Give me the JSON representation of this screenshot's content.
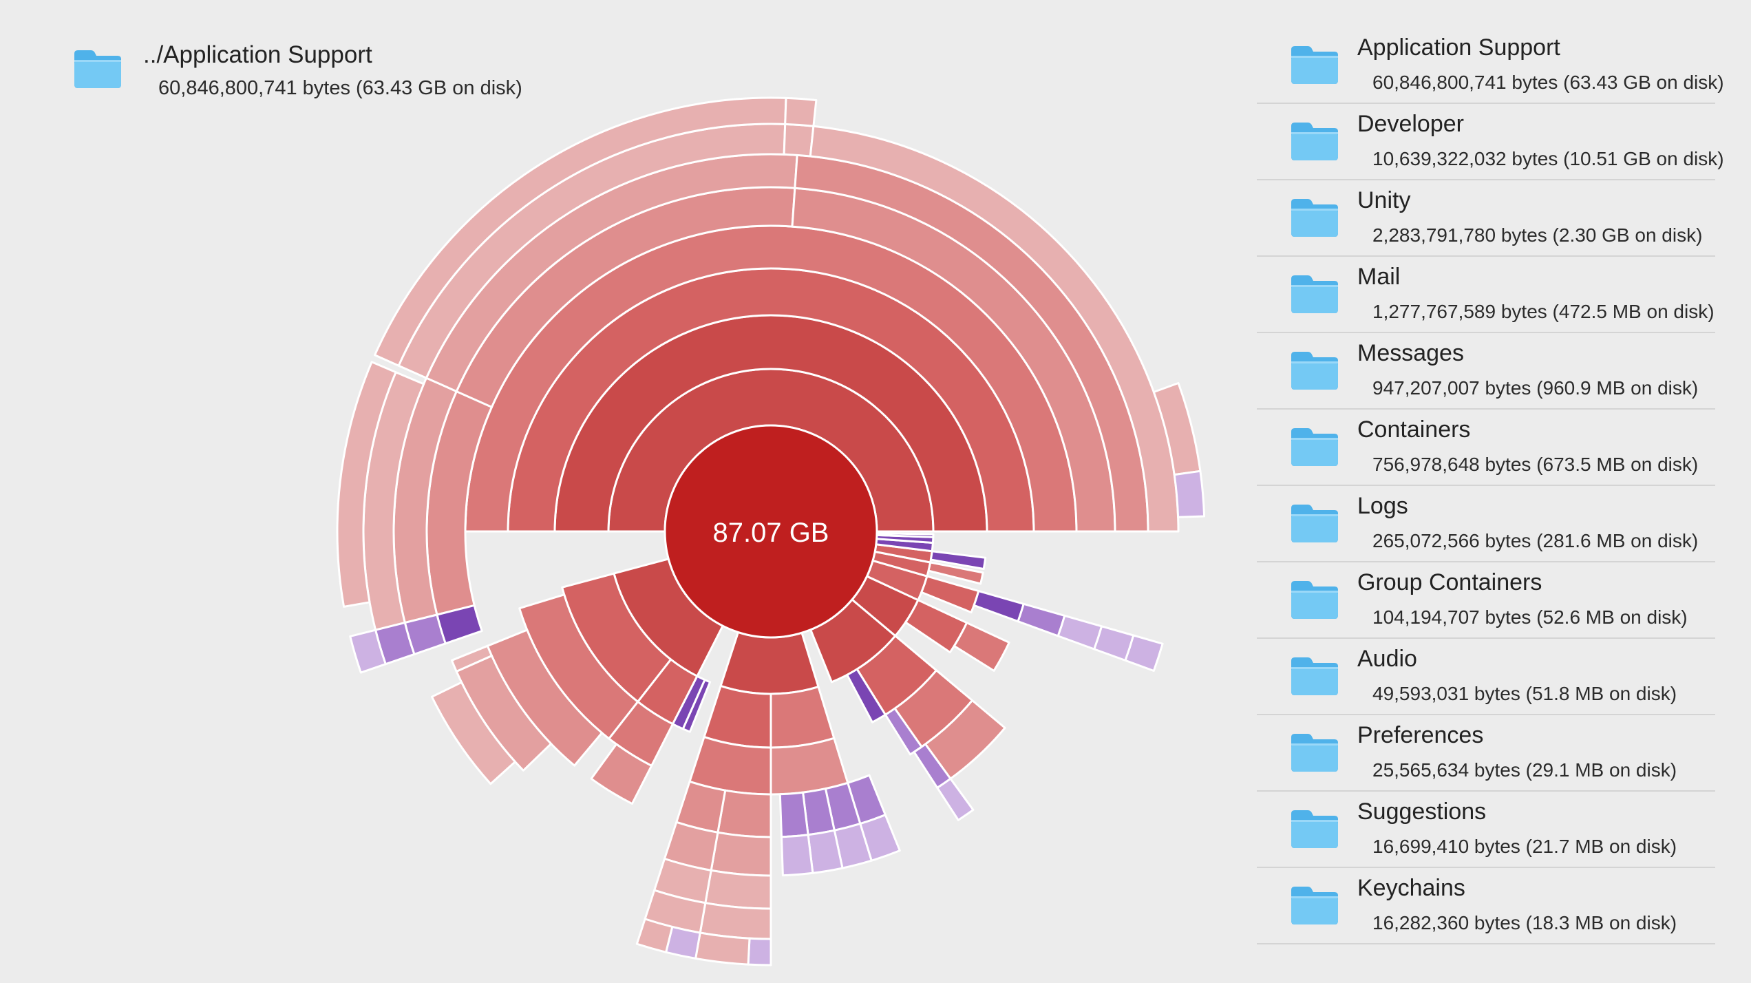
{
  "current_folder": {
    "name": "../Application Support",
    "size": "60,846,800,741 bytes (63.43 GB on disk)",
    "icon": "folder-icon"
  },
  "chart": {
    "center_label": "87.07 GB",
    "colors": {
      "center": "#bf1f1f",
      "folder_levels": [
        "#c94a4a",
        "#d46262",
        "#da7878",
        "#df8e8e",
        "#e3a0a0",
        "#e7b0b0"
      ],
      "file_dark": "#7a45b3",
      "file_mid": "#a97fcf",
      "file_light": "#cdb2e3",
      "separator": "#ffffff",
      "background": "#ececec"
    }
  },
  "items": [
    {
      "name": "Application Support",
      "size": "60,846,800,741 bytes (63.43 GB on disk)",
      "icon": "folder-icon"
    },
    {
      "name": "Developer",
      "size": "10,639,322,032 bytes (10.51 GB on disk)",
      "icon": "folder-icon"
    },
    {
      "name": "Unity",
      "size": "2,283,791,780 bytes (2.30 GB on disk)",
      "icon": "folder-icon"
    },
    {
      "name": "Mail",
      "size": "1,277,767,589 bytes (472.5 MB on disk)",
      "icon": "folder-icon"
    },
    {
      "name": "Messages",
      "size": "947,207,007 bytes (960.9 MB on disk)",
      "icon": "folder-icon"
    },
    {
      "name": "Containers",
      "size": "756,978,648 bytes (673.5 MB on disk)",
      "icon": "folder-icon"
    },
    {
      "name": "Logs",
      "size": "265,072,566 bytes (281.6 MB on disk)",
      "icon": "folder-icon"
    },
    {
      "name": "Group Containers",
      "size": "104,194,707 bytes (52.6 MB on disk)",
      "icon": "folder-icon"
    },
    {
      "name": "Audio",
      "size": "49,593,031 bytes (51.8 MB on disk)",
      "icon": "folder-icon"
    },
    {
      "name": "Preferences",
      "size": "25,565,634 bytes (29.1 MB on disk)",
      "icon": "folder-icon"
    },
    {
      "name": "Suggestions",
      "size": "16,699,410 bytes (21.7 MB on disk)",
      "icon": "folder-icon"
    },
    {
      "name": "Keychains",
      "size": "16,282,360 bytes (18.3 MB on disk)",
      "icon": "folder-icon"
    }
  ]
}
